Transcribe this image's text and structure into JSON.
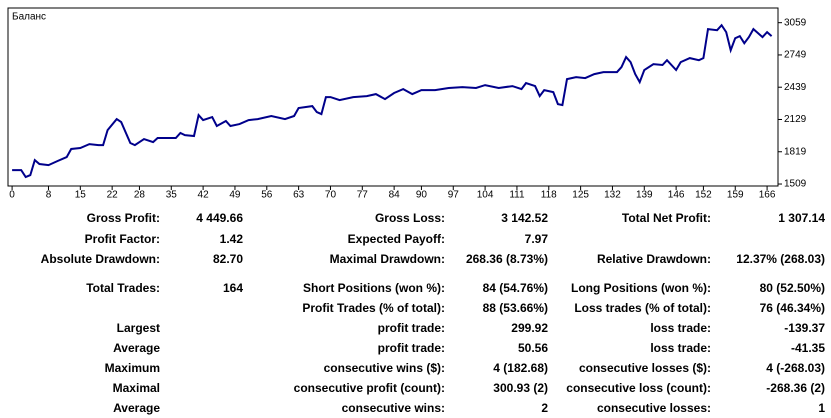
{
  "chart_data": {
    "type": "line",
    "title": "Баланс",
    "x": [
      0,
      2,
      3,
      4,
      5,
      6,
      8,
      10,
      12,
      13,
      15,
      17,
      19,
      20,
      21,
      23,
      24,
      26,
      27,
      29,
      31,
      32,
      36,
      37,
      38,
      40,
      41,
      42,
      44,
      45,
      47,
      48,
      50,
      52,
      54,
      57,
      60,
      62,
      63,
      66,
      67,
      68,
      69,
      70,
      72,
      75,
      78,
      80,
      82,
      84,
      86,
      88,
      90,
      93,
      96,
      99,
      102,
      104,
      107,
      110,
      112,
      113,
      115,
      116,
      117,
      119,
      120,
      121,
      122,
      124,
      126,
      128,
      130,
      133,
      134,
      135,
      136,
      137,
      138,
      139,
      141,
      143,
      144,
      146,
      147,
      149,
      151,
      152,
      153,
      155,
      156,
      157,
      158,
      159,
      160,
      161,
      162,
      163,
      164,
      165,
      166,
      167
    ],
    "values": [
      1643,
      1643,
      1576,
      1595,
      1739,
      1701,
      1691,
      1730,
      1768,
      1845,
      1855,
      1893,
      1883,
      1883,
      2027,
      2133,
      2104,
      1903,
      1883,
      1941,
      1912,
      1951,
      1951,
      1999,
      1979,
      1970,
      2171,
      2123,
      2152,
      2066,
      2114,
      2066,
      2085,
      2123,
      2133,
      2162,
      2133,
      2162,
      2239,
      2258,
      2200,
      2181,
      2344,
      2344,
      2315,
      2344,
      2354,
      2373,
      2325,
      2383,
      2421,
      2373,
      2411,
      2411,
      2431,
      2440,
      2431,
      2459,
      2431,
      2450,
      2421,
      2479,
      2450,
      2354,
      2411,
      2392,
      2277,
      2267,
      2517,
      2536,
      2527,
      2565,
      2584,
      2584,
      2632,
      2728,
      2680,
      2565,
      2488,
      2604,
      2661,
      2652,
      2699,
      2604,
      2680,
      2719,
      2699,
      2719,
      2997,
      2987,
      3035,
      2968,
      2795,
      2910,
      2930,
      2862,
      2920,
      2997,
      2959,
      2920,
      2968,
      2930
    ],
    "color": "#00008b",
    "xlim": [
      -0.9,
      168.4
    ],
    "xticks": [
      0,
      8,
      15,
      22,
      28,
      35,
      42,
      49,
      56,
      63,
      70,
      77,
      84,
      90,
      97,
      104,
      111,
      118,
      125,
      132,
      139,
      146,
      152,
      159,
      166
    ],
    "ylim": [
      1490,
      3200
    ],
    "yticks": [
      1509,
      1819,
      2129,
      2439,
      2749,
      3059
    ],
    "grid": false
  },
  "table": {
    "rows": [
      [
        "Gross Profit:",
        "4 449.66",
        "Gross Loss:",
        "3 142.52",
        "Total Net Profit:",
        "1 307.14"
      ],
      [
        "Profit Factor:",
        "1.42",
        "Expected Payoff:",
        "7.97",
        null,
        null
      ],
      [
        "Absolute Drawdown:",
        "82.70",
        "Maximal Drawdown:",
        "268.36 (8.73%)",
        "Relative Drawdown:",
        "12.37% (268.03)"
      ],
      [
        "Total Trades:",
        "164",
        "Short Positions (won %):",
        "84 (54.76%)",
        "Long Positions (won %):",
        "80 (52.50%)"
      ],
      [
        null,
        null,
        "Profit Trades (% of total):",
        "88 (53.66%)",
        "Loss trades (% of total):",
        "76 (46.34%)"
      ],
      [
        "Largest",
        null,
        "profit trade:",
        "299.92",
        "loss trade:",
        "-139.37"
      ],
      [
        "Average",
        null,
        "profit trade:",
        "50.56",
        "loss trade:",
        "-41.35"
      ],
      [
        "Maximum",
        null,
        "consecutive wins ($):",
        "4 (182.68)",
        "consecutive losses ($):",
        "4 (-268.03)"
      ],
      [
        "Maximal",
        null,
        "consecutive profit (count):",
        "300.93 (2)",
        "consecutive loss (count):",
        "-268.36 (2)"
      ],
      [
        "Average",
        null,
        "consecutive wins:",
        "2",
        "consecutive losses:",
        "1"
      ]
    ]
  }
}
